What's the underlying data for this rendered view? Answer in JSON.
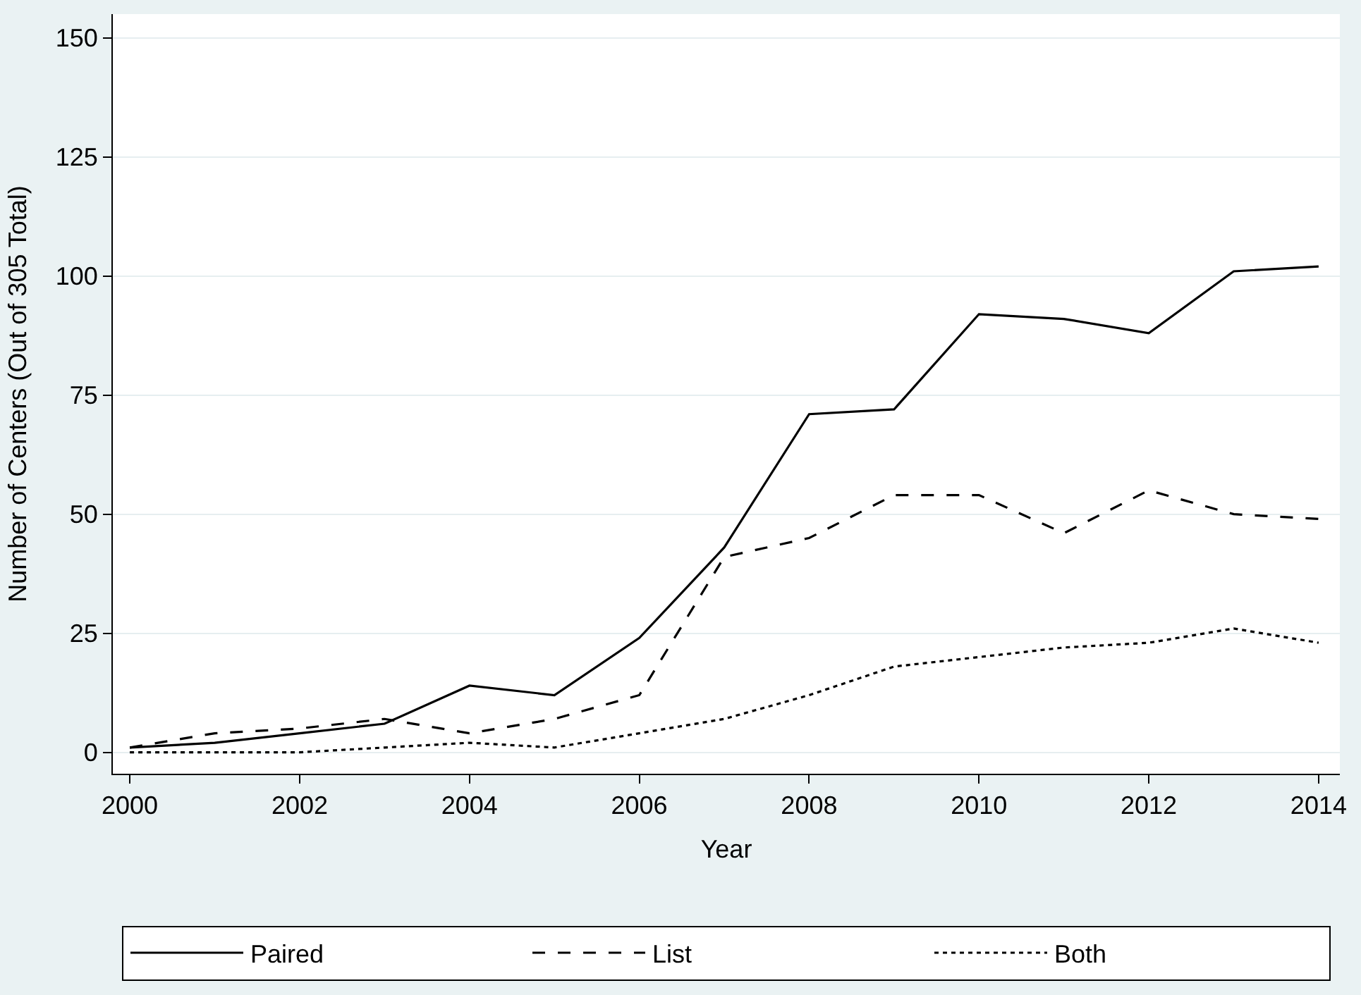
{
  "chart_data": {
    "type": "line",
    "xlabel": "Year",
    "ylabel": "Number of Centers (Out of 305 Total)",
    "x": [
      2000,
      2001,
      2002,
      2003,
      2004,
      2005,
      2006,
      2007,
      2008,
      2009,
      2010,
      2011,
      2012,
      2013,
      2014
    ],
    "xlim": [
      1999.8,
      2014.25
    ],
    "xticks": [
      2000,
      2002,
      2004,
      2006,
      2008,
      2010,
      2012,
      2014
    ],
    "ylim": [
      -4.5,
      155
    ],
    "yticks": [
      0,
      25,
      50,
      75,
      100,
      125,
      150
    ],
    "grid": "y",
    "legend": "bottom",
    "marker": "none",
    "series": [
      {
        "name": "Paired",
        "color": "#000000",
        "line_style": "solid",
        "values": [
          1,
          2,
          4,
          6,
          14,
          12,
          24,
          43,
          71,
          72,
          92,
          91,
          88,
          101,
          102
        ]
      },
      {
        "name": "List",
        "color": "#000000",
        "line_style": "dashed",
        "values": [
          1,
          4,
          5,
          7,
          4,
          7,
          12,
          41,
          45,
          54,
          54,
          46,
          55,
          50,
          49
        ]
      },
      {
        "name": "Both",
        "color": "#000000",
        "line_style": "dotted",
        "values": [
          0,
          0,
          0,
          1,
          2,
          1,
          4,
          7,
          12,
          18,
          20,
          22,
          23,
          26,
          23
        ]
      }
    ]
  }
}
